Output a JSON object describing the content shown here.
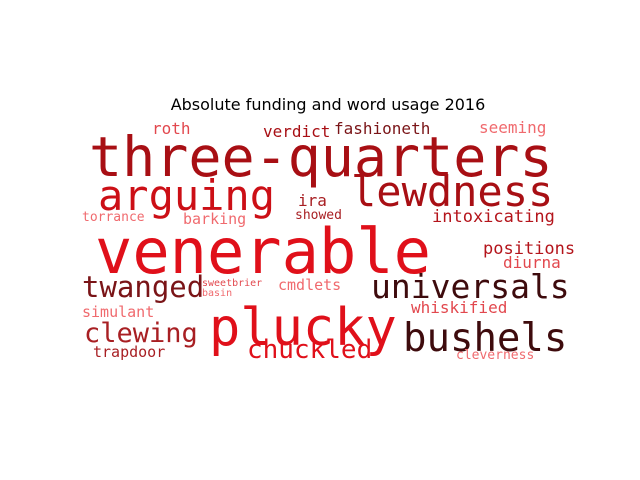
{
  "chart_data": {
    "type": "wordcloud",
    "title": "Absolute funding and word usage 2016",
    "words": [
      {
        "text": "venerable",
        "weight": 100,
        "color": "#e0101a"
      },
      {
        "text": "three-quarters",
        "weight": 88,
        "color": "#a80f14"
      },
      {
        "text": "plucky",
        "weight": 82,
        "color": "#e0101a"
      },
      {
        "text": "arguing",
        "weight": 68,
        "color": "#cc0f16"
      },
      {
        "text": "lewdness",
        "weight": 66,
        "color": "#a80f14"
      },
      {
        "text": "bushels",
        "weight": 62,
        "color": "#3e0b0d"
      },
      {
        "text": "universals",
        "weight": 52,
        "color": "#3e0b0d"
      },
      {
        "text": "twanged",
        "weight": 47,
        "color": "#7a1417"
      },
      {
        "text": "clewing",
        "weight": 44,
        "color": "#a81f23"
      },
      {
        "text": "chuckled",
        "weight": 42,
        "color": "#e0101a"
      },
      {
        "text": "intoxicating",
        "weight": 30,
        "color": "#b4141b"
      },
      {
        "text": "positions",
        "weight": 28,
        "color": "#b4141b"
      },
      {
        "text": "diurna",
        "weight": 26,
        "color": "#e2484e"
      },
      {
        "text": "fashioneth",
        "weight": 26,
        "color": "#7a1417"
      },
      {
        "text": "verdict",
        "weight": 26,
        "color": "#a80f14"
      },
      {
        "text": "whiskified",
        "weight": 26,
        "color": "#e2484e"
      },
      {
        "text": "roth",
        "weight": 26,
        "color": "#e2484e"
      },
      {
        "text": "seeming",
        "weight": 26,
        "color": "#f06a6e"
      },
      {
        "text": "ira",
        "weight": 26,
        "color": "#a81f23"
      },
      {
        "text": "barking",
        "weight": 25,
        "color": "#f06a6e"
      },
      {
        "text": "cmdlets",
        "weight": 25,
        "color": "#f06a6e"
      },
      {
        "text": "simulant",
        "weight": 25,
        "color": "#f06a6e"
      },
      {
        "text": "trapdoor",
        "weight": 25,
        "color": "#a81f23"
      },
      {
        "text": "torrance",
        "weight": 22,
        "color": "#f06a6e"
      },
      {
        "text": "showed",
        "weight": 22,
        "color": "#a81f23"
      },
      {
        "text": "cleverness",
        "weight": 22,
        "color": "#f06a6e"
      },
      {
        "text": "sweetbrier",
        "weight": 17,
        "color": "#e2484e"
      },
      {
        "text": "basin",
        "weight": 16,
        "color": "#f06a6e"
      }
    ]
  }
}
